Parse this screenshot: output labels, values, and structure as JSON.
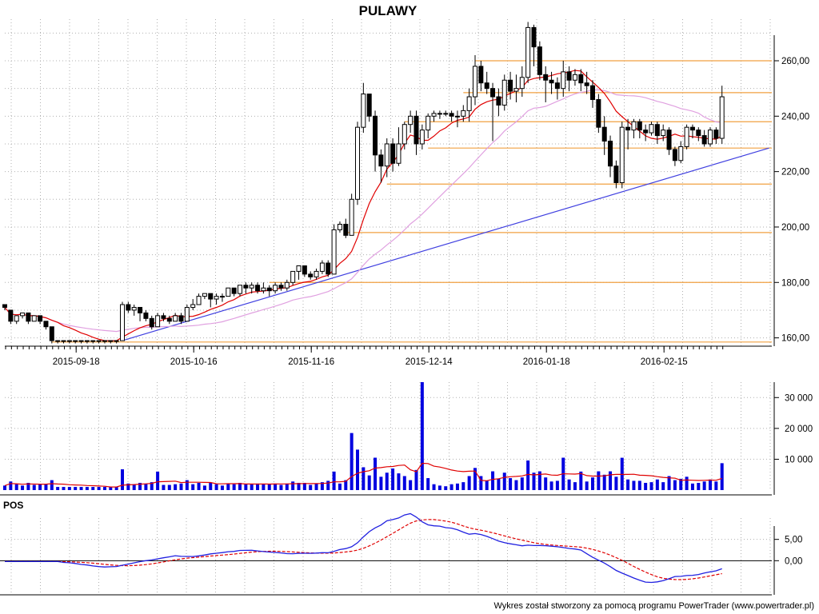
{
  "chart_data": {
    "type": "candlestick",
    "title": "PULAWY",
    "footer": "Wykres został stworzony za pomocą programu PowerTrader (www.powertrader.pl)",
    "price_panel": {
      "ylim": [
        157,
        275
      ],
      "y_ticks": [
        160,
        180,
        200,
        220,
        240,
        260
      ],
      "y_tick_labels": [
        "160,00",
        "180,00",
        "200,00",
        "220,00",
        "240,00",
        "260,00"
      ],
      "x_tick_labels": [
        {
          "label": "2015-09-18",
          "index": 12
        },
        {
          "label": "2015-10-16",
          "index": 32
        },
        {
          "label": "2015-11-16",
          "index": 52
        },
        {
          "label": "2015-12-14",
          "index": 72
        },
        {
          "label": "2016-01-18",
          "index": 92
        },
        {
          "label": "2016-02-15",
          "index": 112
        }
      ],
      "candles": [
        [
          172,
          171,
          172,
          170
        ],
        [
          170,
          166,
          170,
          165
        ],
        [
          166,
          168,
          168,
          165
        ],
        [
          168,
          169,
          169,
          167
        ],
        [
          169,
          166,
          169,
          165
        ],
        [
          166,
          168,
          168,
          166
        ],
        [
          168,
          166,
          168,
          165
        ],
        [
          166,
          164,
          166,
          163
        ],
        [
          164,
          159,
          164,
          158
        ],
        [
          159,
          159,
          159,
          158
        ],
        [
          159,
          159,
          159,
          158
        ],
        [
          159,
          159,
          159,
          158
        ],
        [
          159,
          159,
          159,
          158
        ],
        [
          159,
          159,
          159,
          158
        ],
        [
          159,
          159,
          159,
          158
        ],
        [
          159,
          159,
          159,
          158
        ],
        [
          159,
          159,
          159,
          158
        ],
        [
          159,
          159,
          159,
          158
        ],
        [
          159,
          159,
          159,
          158
        ],
        [
          159,
          159,
          159,
          158
        ],
        [
          159,
          172,
          173,
          159
        ],
        [
          172,
          170,
          173,
          169
        ],
        [
          170,
          171,
          172,
          168
        ],
        [
          171,
          169,
          171,
          166
        ],
        [
          169,
          167,
          170,
          166
        ],
        [
          167,
          164,
          168,
          163
        ],
        [
          164,
          168,
          169,
          164
        ],
        [
          168,
          167,
          169,
          166
        ],
        [
          167,
          166,
          168,
          165
        ],
        [
          166,
          168,
          169,
          166
        ],
        [
          168,
          166,
          169,
          165
        ],
        [
          166,
          171,
          172,
          166
        ],
        [
          171,
          172,
          174,
          170
        ],
        [
          172,
          175,
          176,
          172
        ],
        [
          175,
          176,
          176,
          174
        ],
        [
          176,
          174,
          176,
          171
        ],
        [
          174,
          175,
          176,
          172
        ],
        [
          175,
          175,
          176,
          173
        ],
        [
          175,
          178,
          178,
          175
        ],
        [
          178,
          176,
          178,
          175
        ],
        [
          176,
          179,
          179,
          175
        ],
        [
          179,
          178,
          180,
          176
        ],
        [
          178,
          179,
          180,
          176
        ],
        [
          179,
          177,
          180,
          176
        ],
        [
          177,
          178,
          180,
          176
        ],
        [
          178,
          177,
          179,
          175
        ],
        [
          177,
          179,
          180,
          176
        ],
        [
          179,
          178,
          180,
          177
        ],
        [
          178,
          180,
          181,
          177
        ],
        [
          180,
          184,
          184,
          179
        ],
        [
          184,
          186,
          186,
          181
        ],
        [
          186,
          183,
          186,
          182
        ],
        [
          183,
          182,
          184,
          181
        ],
        [
          182,
          184,
          185,
          181
        ],
        [
          184,
          187,
          188,
          183
        ],
        [
          187,
          183,
          188,
          182
        ],
        [
          183,
          199,
          201,
          183
        ],
        [
          199,
          201,
          202,
          198
        ],
        [
          201,
          197,
          203,
          196
        ],
        [
          197,
          210,
          212,
          197
        ],
        [
          210,
          236,
          238,
          208
        ],
        [
          236,
          248,
          252,
          234
        ],
        [
          248,
          240,
          248,
          238
        ],
        [
          240,
          226,
          242,
          220
        ],
        [
          226,
          222,
          228,
          216
        ],
        [
          222,
          230,
          232,
          218
        ],
        [
          230,
          223,
          232,
          220
        ],
        [
          223,
          230,
          236,
          222
        ],
        [
          230,
          237,
          238,
          228
        ],
        [
          237,
          240,
          242,
          234
        ],
        [
          240,
          230,
          242,
          226
        ],
        [
          230,
          235,
          237,
          228
        ],
        [
          235,
          240,
          241,
          232
        ],
        [
          240,
          241,
          242,
          238
        ],
        [
          241,
          241,
          242,
          239
        ],
        [
          241,
          241,
          242,
          240
        ],
        [
          241,
          240,
          242,
          238
        ],
        [
          240,
          240,
          242,
          236
        ],
        [
          240,
          242,
          244,
          238
        ],
        [
          242,
          247,
          250,
          238
        ],
        [
          247,
          258,
          262,
          244
        ],
        [
          258,
          252,
          260,
          249
        ],
        [
          252,
          250,
          256,
          248
        ],
        [
          250,
          247,
          252,
          231
        ],
        [
          247,
          244,
          250,
          240
        ],
        [
          244,
          253,
          255,
          242
        ],
        [
          253,
          249,
          256,
          246
        ],
        [
          249,
          250,
          255,
          245
        ],
        [
          250,
          254,
          258,
          247
        ],
        [
          254,
          272,
          274,
          252
        ],
        [
          272,
          265,
          273,
          258
        ],
        [
          265,
          255,
          267,
          253
        ],
        [
          255,
          253,
          258,
          245
        ],
        [
          253,
          252,
          256,
          248
        ],
        [
          252,
          250,
          254,
          246
        ],
        [
          250,
          256,
          260,
          247
        ],
        [
          256,
          253,
          258,
          249
        ],
        [
          253,
          255,
          257,
          251
        ],
        [
          255,
          252,
          257,
          249
        ],
        [
          252,
          251,
          256,
          248
        ],
        [
          251,
          246,
          253,
          243
        ],
        [
          246,
          236,
          248,
          234
        ],
        [
          236,
          231,
          240,
          226
        ],
        [
          231,
          222,
          233,
          218
        ],
        [
          222,
          216,
          224,
          214
        ],
        [
          216,
          236,
          238,
          214
        ],
        [
          236,
          235,
          239,
          228
        ],
        [
          235,
          238,
          239,
          232
        ],
        [
          238,
          235,
          239,
          232
        ],
        [
          235,
          234,
          237,
          231
        ],
        [
          234,
          237,
          238,
          233
        ],
        [
          237,
          233,
          238,
          230
        ],
        [
          233,
          235,
          237,
          231
        ],
        [
          235,
          228,
          236,
          226
        ],
        [
          228,
          224,
          229,
          222
        ],
        [
          224,
          229,
          231,
          223
        ],
        [
          229,
          236,
          237,
          228
        ],
        [
          236,
          235,
          237,
          232
        ],
        [
          235,
          233,
          236,
          231
        ],
        [
          233,
          230,
          235,
          229
        ],
        [
          230,
          235,
          236,
          229
        ],
        [
          235,
          232,
          236,
          230
        ],
        [
          232,
          247,
          251,
          230
        ]
      ],
      "ma_short_color": "#e00000",
      "ma_long_color": "#e0a0e0",
      "horizontal_levels": [
        {
          "value": 158.5,
          "from_index": 8
        },
        {
          "value": 180,
          "from_index": 45
        },
        {
          "value": 198,
          "from_index": 58
        },
        {
          "value": 215.5,
          "from_index": 65
        },
        {
          "value": 228.5,
          "from_index": 72
        },
        {
          "value": 238,
          "from_index": 68
        },
        {
          "value": 248.5,
          "from_index": 78
        },
        {
          "value": 260,
          "from_index": 80
        }
      ],
      "level_color": "#f0a040",
      "trendline": {
        "from": {
          "index": 20,
          "value": 159
        },
        "to": {
          "index": 130,
          "value": 228.5
        },
        "color": "#4040e0"
      }
    },
    "volume_panel": {
      "ylim": [
        0,
        35000
      ],
      "y_ticks": [
        10000,
        20000,
        30000
      ],
      "y_tick_labels": [
        "10 000",
        "20 000",
        "30 000"
      ],
      "bar_color": "#0000e0",
      "ma_color": "#e00000"
    },
    "pos_panel": {
      "label": "POS",
      "ylim": [
        -8,
        10
      ],
      "y_ticks": [
        0,
        5
      ],
      "y_tick_labels": [
        "0,00",
        "5,00"
      ],
      "pos_color": "#2020e0",
      "signal_color": "#e00000"
    }
  }
}
